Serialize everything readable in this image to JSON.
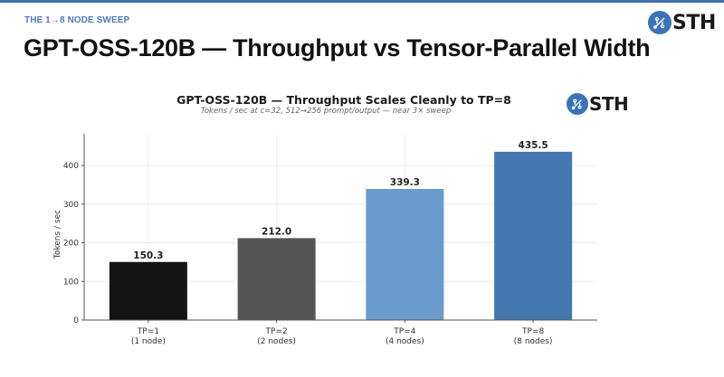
{
  "header": {
    "kicker": "THE 1→8 NODE SWEEP",
    "title": "GPT-OSS-120B — Throughput vs Tensor-Parallel Width",
    "logo_text": "STH",
    "accent_color": "#3f6fae"
  },
  "chart": {
    "title": "GPT-OSS-120B — Throughput Scales Cleanly to TP=8",
    "subtitle": "Tokens / sec at c=32, 512→256 prompt/output — near 3× sweep",
    "logo_text": "STH"
  },
  "chart_data": {
    "type": "bar",
    "title": "GPT-OSS-120B — Throughput Scales Cleanly to TP=8",
    "subtitle": "Tokens / sec at c=32, 512→256 prompt/output — near 3× sweep",
    "categories": [
      "TP=1\n(1 node)",
      "TP=2\n(2 nodes)",
      "TP=4\n(4 nodes)",
      "TP=8\n(8 nodes)"
    ],
    "category_lines": [
      [
        "TP=1",
        "(1 node)"
      ],
      [
        "TP=2",
        "(2 nodes)"
      ],
      [
        "TP=4",
        "(4 nodes)"
      ],
      [
        "TP=8",
        "(8 nodes)"
      ]
    ],
    "values": [
      150.3,
      212.0,
      339.3,
      435.5
    ],
    "value_labels": [
      "150.3",
      "212.0",
      "339.3",
      "435.5"
    ],
    "colors": [
      "#141414",
      "#555555",
      "#6b9bcc",
      "#4477b0"
    ],
    "xlabel": "",
    "ylabel": "Tokens / sec",
    "ylim": [
      0,
      482
    ],
    "yticks": [
      0,
      100,
      200,
      300,
      400
    ],
    "grid": true,
    "legend": null
  }
}
